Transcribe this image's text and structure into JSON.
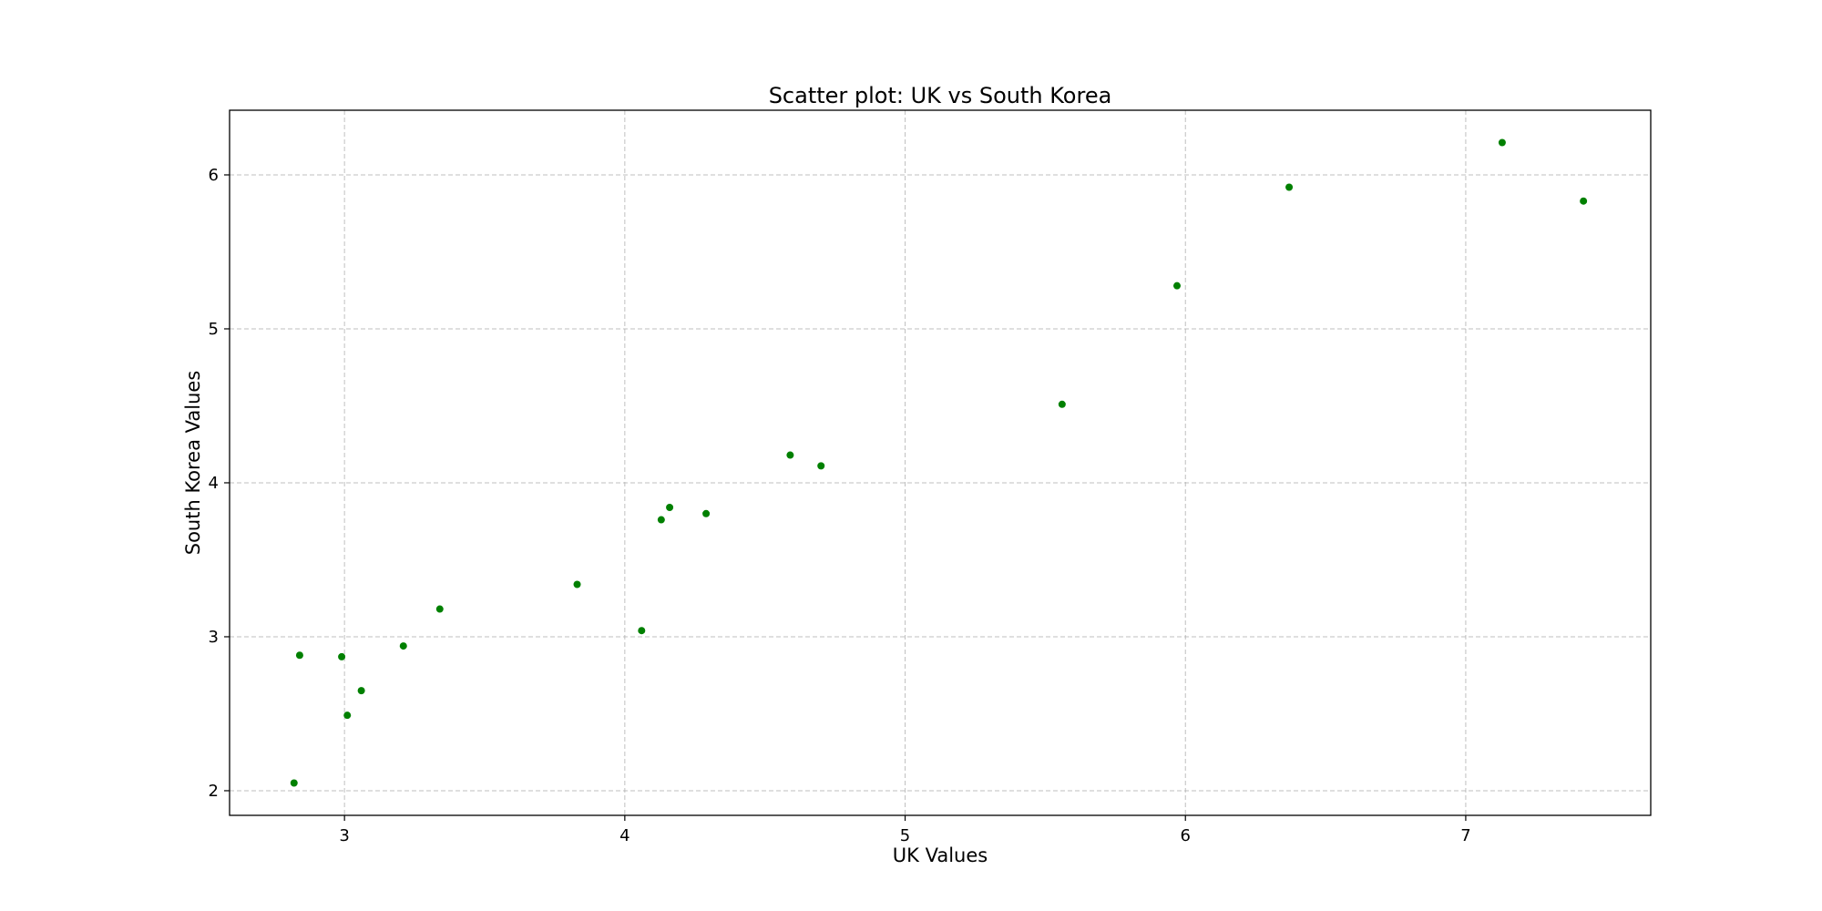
{
  "chart_data": {
    "type": "scatter",
    "title": "Scatter plot: UK vs South Korea",
    "xlabel": "UK Values",
    "ylabel": "South Korea Values",
    "xlim": [
      2.59,
      7.66
    ],
    "ylim": [
      1.84,
      6.42
    ],
    "xticks": [
      3,
      4,
      5,
      6,
      7
    ],
    "yticks": [
      2,
      3,
      4,
      5,
      6
    ],
    "x_tick_labels": [
      "3",
      "4",
      "5",
      "6",
      "7"
    ],
    "y_tick_labels": [
      "2",
      "3",
      "4",
      "5",
      "6"
    ],
    "grid": true,
    "marker_color": "#008000",
    "points": [
      {
        "x": 2.82,
        "y": 2.05
      },
      {
        "x": 2.84,
        "y": 2.88
      },
      {
        "x": 2.99,
        "y": 2.87
      },
      {
        "x": 3.01,
        "y": 2.49
      },
      {
        "x": 3.06,
        "y": 2.65
      },
      {
        "x": 3.21,
        "y": 2.94
      },
      {
        "x": 3.34,
        "y": 3.18
      },
      {
        "x": 3.83,
        "y": 3.34
      },
      {
        "x": 4.06,
        "y": 3.04
      },
      {
        "x": 4.13,
        "y": 3.76
      },
      {
        "x": 4.16,
        "y": 3.84
      },
      {
        "x": 4.29,
        "y": 3.8
      },
      {
        "x": 4.59,
        "y": 4.18
      },
      {
        "x": 4.7,
        "y": 4.11
      },
      {
        "x": 5.56,
        "y": 4.51
      },
      {
        "x": 5.97,
        "y": 5.28
      },
      {
        "x": 6.37,
        "y": 5.92
      },
      {
        "x": 7.13,
        "y": 6.21
      },
      {
        "x": 7.42,
        "y": 5.83
      }
    ]
  }
}
